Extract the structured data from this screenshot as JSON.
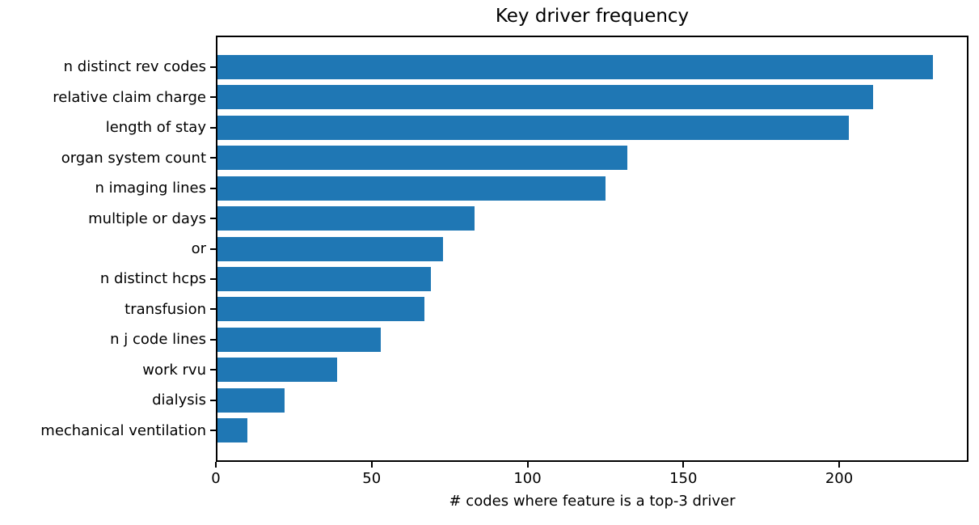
{
  "chart_data": {
    "type": "bar",
    "orientation": "horizontal",
    "title": "Key driver frequency",
    "xlabel": "# codes where feature is a top-3 driver",
    "ylabel": "",
    "categories": [
      "n distinct rev codes",
      "relative claim charge",
      "length of stay",
      "organ system count",
      "n imaging lines",
      "multiple or days",
      "or",
      "n distinct hcps",
      "transfusion",
      "n j code lines",
      "work rvu",
      "dialysis",
      "mechanical ventilation"
    ],
    "values": [
      230,
      211,
      203,
      132,
      125,
      83,
      73,
      69,
      67,
      53,
      39,
      22,
      10
    ],
    "xlim": [
      0,
      241.5
    ],
    "xticks": [
      0,
      50,
      100,
      150,
      200
    ],
    "bar_color": "#1f77b4",
    "axis_color": "#000000",
    "background_color": "#ffffff",
    "grid": false,
    "legend": "none"
  }
}
